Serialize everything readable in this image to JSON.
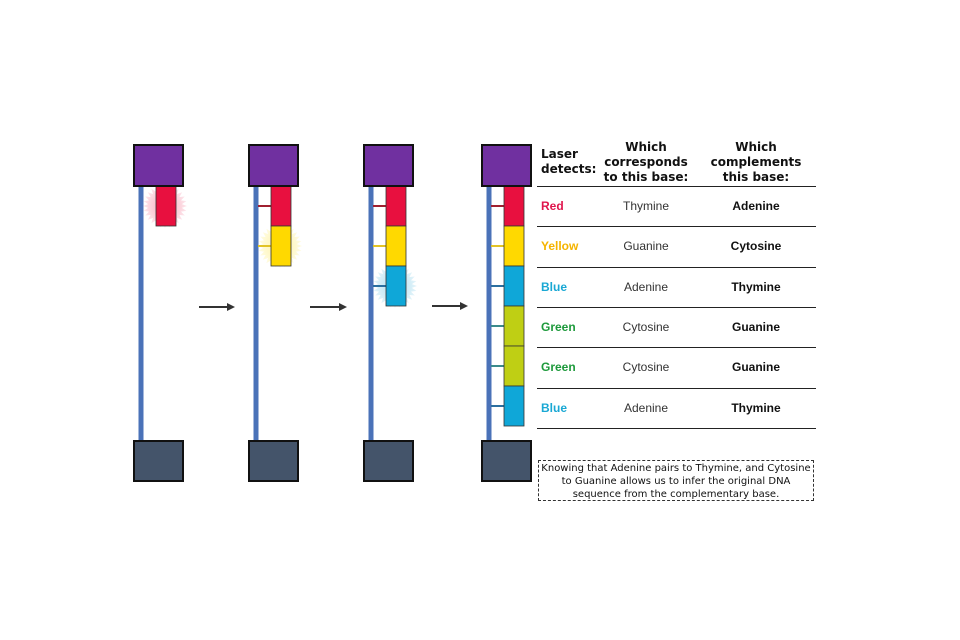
{
  "colors": {
    "purple": "#7030a0",
    "slate": "#44546a",
    "strand": "#4a72b8",
    "red": "#e8103f",
    "yellow": "#ffd900",
    "blue": "#0fa7d8",
    "green": "#bfcf14",
    "label_red": "#e0154c",
    "label_yellow": "#f5b400",
    "label_blue": "#1aa8d4",
    "label_green": "#1e9a3c"
  },
  "panels": [
    {
      "step": 1,
      "bases": [
        "red"
      ],
      "glow": "red"
    },
    {
      "step": 2,
      "bases": [
        "red",
        "yellow"
      ],
      "glow": "yellow"
    },
    {
      "step": 3,
      "bases": [
        "red",
        "yellow",
        "blue"
      ],
      "glow": "blue"
    },
    {
      "step": 4,
      "bases": [
        "red",
        "yellow",
        "blue",
        "green",
        "green",
        "blue"
      ],
      "glow": null
    }
  ],
  "table": {
    "headers": {
      "laser": "Laser\ndetects:",
      "corresponds": "Which\ncorresponds\nto this base:",
      "complements": "Which\ncomplements\nthis base:"
    },
    "rows": [
      {
        "detects": "Red",
        "color": "label_red",
        "corresponds": "Thymine",
        "complements": "Adenine"
      },
      {
        "detects": "Yellow",
        "color": "label_yellow",
        "corresponds": "Guanine",
        "complements": "Cytosine"
      },
      {
        "detects": "Blue",
        "color": "label_blue",
        "corresponds": "Adenine",
        "complements": "Thymine"
      },
      {
        "detects": "Green",
        "color": "label_green",
        "corresponds": "Cytosine",
        "complements": "Guanine"
      },
      {
        "detects": "Green",
        "color": "label_green",
        "corresponds": "Cytosine",
        "complements": "Guanine"
      },
      {
        "detects": "Blue",
        "color": "label_blue",
        "corresponds": "Adenine",
        "complements": "Thymine"
      }
    ]
  },
  "note": "Knowing that Adenine pairs to Thymine, and Cytosine to Guanine allows us to infer the original DNA sequence from the complementary base."
}
